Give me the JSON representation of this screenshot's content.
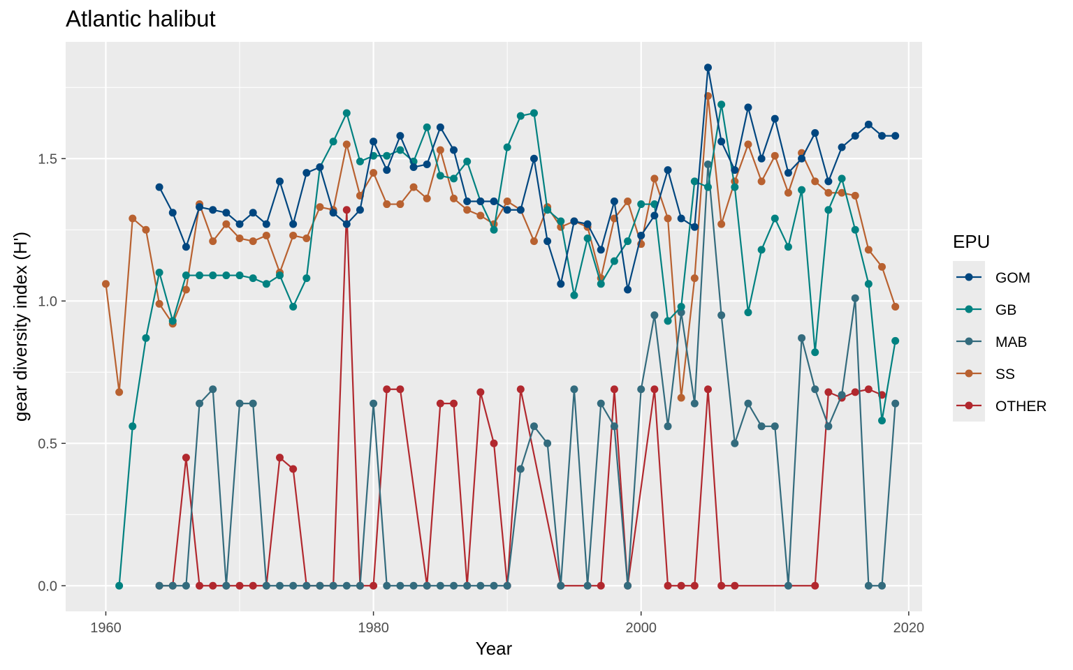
{
  "chart_data": {
    "type": "line",
    "title": "Atlantic halibut",
    "xlabel": "Year",
    "ylabel": "gear diversity index (H')",
    "xlim": [
      1957,
      2021
    ],
    "ylim": [
      -0.09,
      1.91
    ],
    "x_ticks": [
      1960,
      1980,
      2000,
      2020
    ],
    "y_ticks": [
      0.0,
      0.5,
      1.0,
      1.5
    ],
    "x_tick_labels": [
      "1960",
      "1980",
      "2000",
      "2020"
    ],
    "y_tick_labels": [
      "0.0",
      "0.5",
      "1.0",
      "1.5"
    ],
    "grid": true,
    "legend_title": "EPU",
    "legend_position": "right",
    "series": [
      {
        "name": "GOM",
        "color": "#00467F",
        "x": [
          1964,
          1965,
          1966,
          1967,
          1968,
          1969,
          1970,
          1971,
          1972,
          1973,
          1974,
          1975,
          1976,
          1977,
          1978,
          1979,
          1980,
          1981,
          1982,
          1983,
          1984,
          1985,
          1986,
          1987,
          1988,
          1989,
          1990,
          1991,
          1992,
          1993,
          1994,
          1995,
          1996,
          1997,
          1998,
          1999,
          2000,
          2001,
          2002,
          2003,
          2004,
          2005,
          2006,
          2007,
          2008,
          2009,
          2010,
          2011,
          2012,
          2013,
          2014,
          2015,
          2016,
          2017,
          2018,
          2019
        ],
        "y": [
          1.4,
          1.31,
          1.19,
          1.33,
          1.32,
          1.31,
          1.27,
          1.31,
          1.27,
          1.42,
          1.27,
          1.45,
          1.47,
          1.31,
          1.27,
          1.32,
          1.56,
          1.46,
          1.58,
          1.47,
          1.48,
          1.61,
          1.53,
          1.35,
          1.35,
          1.35,
          1.32,
          1.32,
          1.5,
          1.21,
          1.06,
          1.28,
          1.27,
          1.18,
          1.35,
          1.04,
          1.23,
          1.3,
          1.46,
          1.29,
          1.26,
          1.82,
          1.56,
          1.46,
          1.68,
          1.5,
          1.64,
          1.45,
          1.5,
          1.59,
          1.42,
          1.54,
          1.58,
          1.62,
          1.58,
          1.58
        ]
      },
      {
        "name": "GB",
        "color": "#008180",
        "x": [
          1961,
          1962,
          1963,
          1964,
          1965,
          1966,
          1967,
          1968,
          1969,
          1970,
          1971,
          1972,
          1973,
          1974,
          1975,
          1976,
          1977,
          1978,
          1979,
          1980,
          1981,
          1982,
          1983,
          1984,
          1985,
          1986,
          1987,
          1988,
          1989,
          1990,
          1991,
          1992,
          1993,
          1994,
          1995,
          1996,
          1997,
          1998,
          1999,
          2000,
          2001,
          2002,
          2003,
          2004,
          2005,
          2006,
          2007,
          2008,
          2009,
          2010,
          2011,
          2012,
          2013,
          2014,
          2015,
          2016,
          2017,
          2018,
          2019
        ],
        "y": [
          0.0,
          0.56,
          0.87,
          1.1,
          0.93,
          1.09,
          1.09,
          1.09,
          1.09,
          1.09,
          1.08,
          1.06,
          1.09,
          0.98,
          1.08,
          1.47,
          1.56,
          1.66,
          1.49,
          1.51,
          1.51,
          1.53,
          1.49,
          1.61,
          1.44,
          1.43,
          1.49,
          1.35,
          1.25,
          1.54,
          1.65,
          1.66,
          1.32,
          1.28,
          1.02,
          1.22,
          1.06,
          1.14,
          1.21,
          1.34,
          1.34,
          0.93,
          0.98,
          1.42,
          1.4,
          1.69,
          1.4,
          0.96,
          1.18,
          1.29,
          1.19,
          1.39,
          0.82,
          1.32,
          1.43,
          1.25,
          1.06,
          0.58,
          0.86
        ]
      },
      {
        "name": "MAB",
        "color": "#336B7D",
        "x": [
          1964,
          1965,
          1966,
          1967,
          1968,
          1969,
          1970,
          1971,
          1972,
          1973,
          1974,
          1975,
          1976,
          1977,
          1978,
          1979,
          1980,
          1981,
          1982,
          1983,
          1984,
          1985,
          1986,
          1987,
          1988,
          1989,
          1990,
          1991,
          1992,
          1993,
          1994,
          1995,
          1996,
          1997,
          1998,
          1999,
          2000,
          2001,
          2002,
          2003,
          2004,
          2005,
          2006,
          2007,
          2008,
          2009,
          2010,
          2011,
          2012,
          2013,
          2014,
          2015,
          2016,
          2017,
          2018,
          2019
        ],
        "y": [
          0.0,
          0.0,
          0.0,
          0.64,
          0.69,
          0.0,
          0.64,
          0.64,
          0.0,
          0.0,
          0.0,
          0.0,
          0.0,
          0.0,
          0.0,
          0.0,
          0.64,
          0.0,
          0.0,
          0.0,
          0.0,
          0.0,
          0.0,
          0.0,
          0.0,
          0.0,
          0.0,
          0.41,
          0.56,
          0.5,
          0.0,
          0.69,
          0.0,
          0.64,
          0.56,
          0.0,
          0.69,
          0.95,
          0.56,
          0.96,
          0.64,
          1.48,
          0.95,
          0.5,
          0.64,
          0.56,
          0.56,
          0.0,
          0.87,
          0.69,
          0.56,
          0.67,
          1.01,
          0.0,
          0.0,
          0.64
        ]
      },
      {
        "name": "SS",
        "color": "#B86130",
        "x": [
          1960,
          1961,
          1962,
          1963,
          1964,
          1965,
          1966,
          1967,
          1968,
          1969,
          1970,
          1971,
          1972,
          1973,
          1974,
          1975,
          1976,
          1977,
          1978,
          1979,
          1980,
          1981,
          1982,
          1983,
          1984,
          1985,
          1986,
          1987,
          1988,
          1989,
          1990,
          1991,
          1992,
          1993,
          1994,
          1995,
          1996,
          1997,
          1998,
          1999,
          2000,
          2001,
          2002,
          2003,
          2004,
          2005,
          2006,
          2007,
          2008,
          2009,
          2010,
          2011,
          2012,
          2013,
          2014,
          2015,
          2016,
          2017,
          2018,
          2019
        ],
        "y": [
          1.06,
          0.68,
          1.29,
          1.25,
          0.99,
          0.92,
          1.04,
          1.34,
          1.21,
          1.27,
          1.22,
          1.21,
          1.23,
          1.1,
          1.23,
          1.22,
          1.33,
          1.32,
          1.55,
          1.37,
          1.45,
          1.34,
          1.34,
          1.4,
          1.36,
          1.53,
          1.36,
          1.32,
          1.3,
          1.27,
          1.35,
          1.32,
          1.21,
          1.33,
          1.26,
          1.28,
          1.26,
          1.08,
          1.29,
          1.35,
          1.2,
          1.43,
          1.29,
          0.66,
          1.08,
          1.72,
          1.27,
          1.42,
          1.55,
          1.42,
          1.51,
          1.38,
          1.52,
          1.42,
          1.38,
          1.38,
          1.37,
          1.18,
          1.12,
          0.98
        ]
      },
      {
        "name": "OTHER",
        "color": "#B1282E",
        "x": [
          1964,
          1965,
          1966,
          1967,
          1968,
          1969,
          1970,
          1971,
          1972,
          1973,
          1974,
          1975,
          1976,
          1977,
          1978,
          1979,
          1980,
          1981,
          1982,
          1984,
          1985,
          1986,
          1987,
          1988,
          1989,
          1990,
          1991,
          1994,
          1997,
          1998,
          1999,
          2001,
          2002,
          2003,
          2004,
          2005,
          2006,
          2007,
          2013,
          2014,
          2015,
          2016,
          2017,
          2018
        ],
        "y": [
          0.0,
          0.0,
          0.45,
          0.0,
          0.0,
          0.0,
          0.0,
          0.0,
          0.0,
          0.45,
          0.41,
          0.0,
          0.0,
          0.0,
          1.32,
          0.0,
          0.0,
          0.69,
          0.69,
          0.0,
          0.64,
          0.64,
          0.0,
          0.68,
          0.5,
          0.0,
          0.69,
          0.0,
          0.0,
          0.69,
          0.0,
          0.69,
          0.0,
          0.0,
          0.0,
          0.69,
          0.0,
          0.0,
          0.0,
          0.68,
          0.66,
          0.68,
          0.69,
          0.67
        ]
      }
    ]
  }
}
